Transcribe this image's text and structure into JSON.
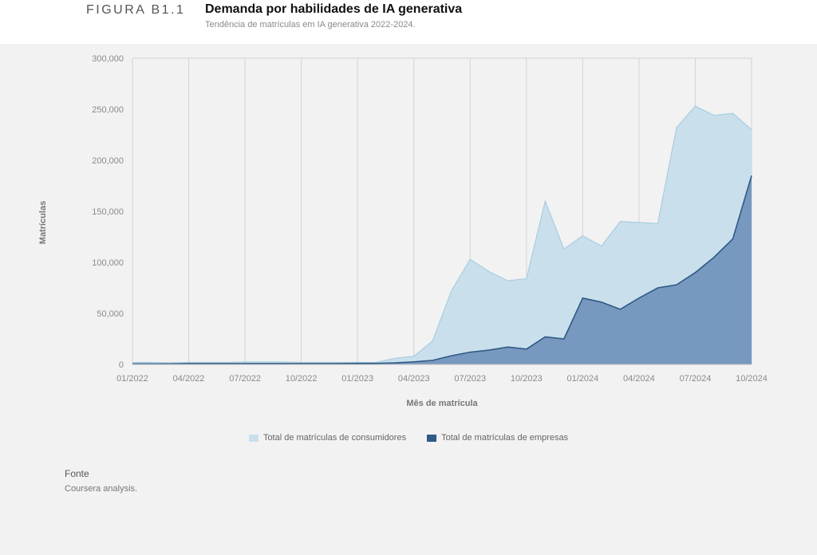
{
  "header": {
    "figure_label": "FIGURA B1.1",
    "title": "Demanda por habilidades de IA generativa",
    "subtitle": "Tendência de matrículas em IA generativa 2022-2024."
  },
  "chart_data": {
    "type": "area",
    "stacked": false,
    "xlabel": "Mês de matrícula",
    "ylabel": "Matrículas",
    "ylim": [
      0,
      300000
    ],
    "yticks": [
      0,
      50000,
      100000,
      150000,
      200000,
      250000,
      300000
    ],
    "ytick_labels": [
      "0",
      "50,000",
      "100,000",
      "150,000",
      "200,000",
      "250,000",
      "300,000"
    ],
    "xtick_labels": [
      "01/2022",
      "04/2022",
      "07/2022",
      "10/2022",
      "01/2023",
      "04/2023",
      "07/2023",
      "10/2023",
      "01/2024",
      "04/2024",
      "07/2024",
      "10/2024"
    ],
    "x": [
      "01/2022",
      "02/2022",
      "03/2022",
      "04/2022",
      "05/2022",
      "06/2022",
      "07/2022",
      "08/2022",
      "09/2022",
      "10/2022",
      "11/2022",
      "12/2022",
      "01/2023",
      "02/2023",
      "03/2023",
      "04/2023",
      "05/2023",
      "06/2023",
      "07/2023",
      "08/2023",
      "09/2023",
      "10/2023",
      "11/2023",
      "12/2023",
      "01/2024",
      "02/2024",
      "03/2024",
      "04/2024",
      "05/2024",
      "06/2024",
      "07/2024",
      "08/2024",
      "09/2024",
      "10/2024"
    ],
    "grid": "vertical",
    "legend_position": "bottom",
    "series": [
      {
        "name": "Total de matrículas de consumidores",
        "color": "#c9dfec",
        "line_color": "#a8cde2",
        "values": [
          2000,
          2000,
          1500,
          2000,
          2000,
          2000,
          2500,
          2500,
          2500,
          2000,
          2000,
          2000,
          2000,
          2000,
          6000,
          8000,
          23000,
          72000,
          103000,
          91000,
          82000,
          84000,
          160000,
          113000,
          126000,
          116000,
          140000,
          139000,
          138000,
          232000,
          253000,
          244000,
          246000,
          230000
        ]
      },
      {
        "name": "Total de matrículas de empresas",
        "color": "#7394bd",
        "line_color": "#2f5a85",
        "values": [
          500,
          500,
          500,
          800,
          800,
          800,
          800,
          800,
          800,
          800,
          800,
          800,
          1000,
          1000,
          1500,
          2500,
          4000,
          8500,
          12000,
          14000,
          17000,
          15000,
          27000,
          25000,
          65000,
          61000,
          54000,
          65000,
          75000,
          78000,
          90000,
          105000,
          123000,
          185000
        ]
      }
    ]
  },
  "source": {
    "title": "Fonte",
    "text": "Coursera analysis."
  }
}
